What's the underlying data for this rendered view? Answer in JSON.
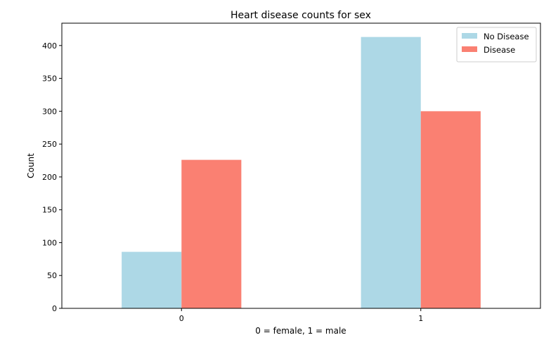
{
  "chart_data": {
    "type": "bar",
    "title": "Heart disease counts for sex",
    "xlabel": "0 = female, 1 = male",
    "ylabel": "Count",
    "categories": [
      "0",
      "1"
    ],
    "series": [
      {
        "name": "No Disease",
        "values": [
          86,
          413
        ],
        "color": "#add8e6"
      },
      {
        "name": "Disease",
        "values": [
          226,
          300
        ],
        "color": "#fa8072"
      }
    ],
    "ylim": [
      0,
      434
    ],
    "yticks": [
      0,
      50,
      100,
      150,
      200,
      250,
      300,
      350,
      400
    ],
    "grid": false,
    "legend_position": "top-right"
  }
}
